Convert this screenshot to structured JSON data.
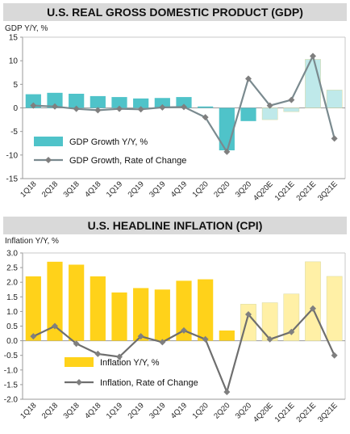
{
  "chart_data": [
    {
      "type": "bar",
      "title": "U.S. REAL GROSS DOMESTIC PRODUCT (GDP)",
      "ylabel": "GDP Y/Y, %",
      "ylim": [
        -15,
        15
      ],
      "yticks": [
        "15",
        "10",
        "5",
        "0",
        "-5",
        "-10",
        "-15"
      ],
      "grid": false,
      "legend_position": "lower-left",
      "categories": [
        "1Q18",
        "2Q18",
        "3Q18",
        "4Q18",
        "1Q19",
        "2Q19",
        "3Q19",
        "4Q19",
        "1Q20",
        "2Q20",
        "3Q20",
        "4Q20E",
        "1Q21E",
        "2Q21E",
        "3Q21E"
      ],
      "series": [
        {
          "name": "GDP Growth Y/Y, %",
          "type": "bar",
          "color": "#4fc3c9",
          "forecast_color": "#bfe9ea",
          "values": [
            2.9,
            3.2,
            3.0,
            2.5,
            2.3,
            2.0,
            2.1,
            2.3,
            0.3,
            -9.0,
            -2.8,
            -2.5,
            -0.8,
            10.3,
            3.8
          ]
        },
        {
          "name": "GDP Growth, Rate of Change",
          "type": "line",
          "color": "#7a8a8f",
          "marker_color": "#7f7f7f",
          "values": [
            0.5,
            0.3,
            -0.2,
            -0.5,
            -0.2,
            -0.3,
            0.1,
            0.2,
            -2.0,
            -9.3,
            6.2,
            0.5,
            1.7,
            11.0,
            -6.5
          ]
        }
      ],
      "forecast_from_index": 11
    },
    {
      "type": "bar",
      "title": "U.S. HEADLINE INFLATION (CPI)",
      "ylabel": "Inflation Y/Y, %",
      "ylim": [
        -2.0,
        3.0
      ],
      "yticks": [
        "3.0",
        "2.5",
        "2.0",
        "1.5",
        "1.0",
        "0.5",
        "0.0",
        "-0.5",
        "-1.0",
        "-1.5",
        "-2.0"
      ],
      "grid": false,
      "legend_position": "lower-left",
      "categories": [
        "1Q18",
        "2Q18",
        "3Q18",
        "4Q18",
        "1Q19",
        "2Q19",
        "3Q19",
        "4Q19",
        "1Q20",
        "2Q20",
        "3Q20",
        "4Q20E",
        "1Q21E",
        "2Q21E",
        "3Q21E"
      ],
      "series": [
        {
          "name": "Inflation Y/Y, %",
          "type": "bar",
          "color": "#ffd21a",
          "forecast_color": "#fff0a6",
          "values": [
            2.2,
            2.7,
            2.6,
            2.2,
            1.65,
            1.8,
            1.75,
            2.05,
            2.1,
            0.35,
            1.25,
            1.3,
            1.6,
            2.7,
            2.2
          ]
        },
        {
          "name": "Inflation, Rate of Change",
          "type": "line",
          "color": "#6e6e6e",
          "marker_color": "#7f7f7f",
          "values": [
            0.15,
            0.5,
            -0.1,
            -0.45,
            -0.55,
            0.15,
            -0.05,
            0.35,
            0.05,
            -1.75,
            0.9,
            0.05,
            0.3,
            1.1,
            -0.5
          ]
        }
      ],
      "forecast_from_index": 10
    }
  ]
}
